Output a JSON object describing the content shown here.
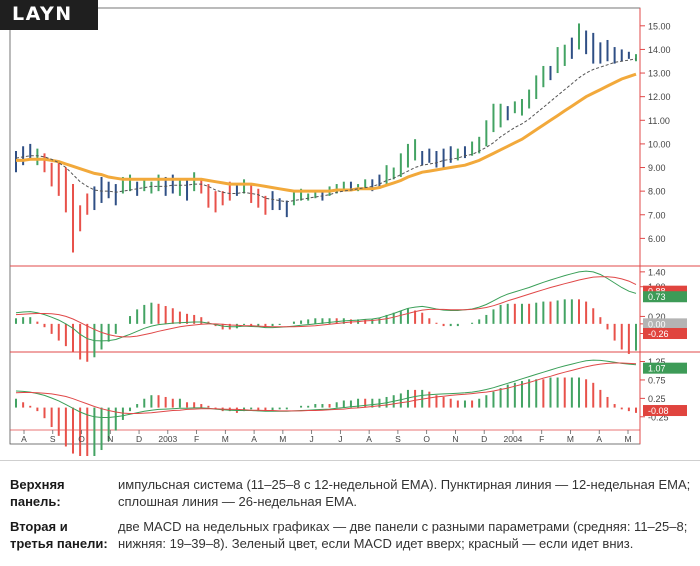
{
  "ticker": "LAYN",
  "colors": {
    "bull": "#43a363",
    "bear": "#e8514a",
    "neutral": "#2f4f85",
    "ema_slow": "#f2a93b",
    "ema_fast": "#555555",
    "axis": "#e04848",
    "macd_fast": "#3a9f58",
    "macd_slow": "#e04848",
    "tag_green": "#3d9b57",
    "tag_red": "#e0443e",
    "tag_gray": "#b4b4b4"
  },
  "chart_data": [
    {
      "type": "line",
      "title": "Верхняя панель: импульсная система",
      "x_ticks": [
        "A",
        "S",
        "O",
        "N",
        "D",
        "2003",
        "F",
        "M",
        "A",
        "M",
        "J",
        "J",
        "A",
        "S",
        "O",
        "N",
        "D",
        "2004",
        "F",
        "M",
        "A",
        "M"
      ],
      "y_ticks": [
        "15.00",
        "14.00",
        "13.00",
        "12.00",
        "11.00",
        "10.00",
        "9.00",
        "8.00",
        "7.00",
        "6.00"
      ],
      "y_tick_values": [
        15,
        14,
        13,
        12,
        11,
        10,
        9,
        8,
        7,
        6
      ],
      "ylim": [
        5.0,
        15.5
      ],
      "bars": [
        {
          "h": 9.7,
          "l": 8.8,
          "c": "neutral"
        },
        {
          "h": 9.9,
          "l": 9.1,
          "c": "neutral"
        },
        {
          "h": 10.0,
          "l": 9.3,
          "c": "neutral"
        },
        {
          "h": 9.8,
          "l": 9.1,
          "c": "bull"
        },
        {
          "h": 9.6,
          "l": 8.8,
          "c": "bear"
        },
        {
          "h": 9.2,
          "l": 8.2,
          "c": "bear"
        },
        {
          "h": 9.3,
          "l": 7.8,
          "c": "bear"
        },
        {
          "h": 9.0,
          "l": 7.1,
          "c": "bear"
        },
        {
          "h": 8.3,
          "l": 5.4,
          "c": "bear"
        },
        {
          "h": 7.4,
          "l": 6.3,
          "c": "bear"
        },
        {
          "h": 7.9,
          "l": 7.0,
          "c": "bear"
        },
        {
          "h": 8.2,
          "l": 7.2,
          "c": "neutral"
        },
        {
          "h": 8.6,
          "l": 7.5,
          "c": "neutral"
        },
        {
          "h": 8.4,
          "l": 7.7,
          "c": "neutral"
        },
        {
          "h": 8.3,
          "l": 7.4,
          "c": "neutral"
        },
        {
          "h": 8.6,
          "l": 7.9,
          "c": "bull"
        },
        {
          "h": 8.7,
          "l": 8.0,
          "c": "bull"
        },
        {
          "h": 8.4,
          "l": 7.8,
          "c": "neutral"
        },
        {
          "h": 8.5,
          "l": 8.0,
          "c": "bull"
        },
        {
          "h": 8.4,
          "l": 7.9,
          "c": "bull"
        },
        {
          "h": 8.7,
          "l": 8.0,
          "c": "bull"
        },
        {
          "h": 8.6,
          "l": 7.8,
          "c": "neutral"
        },
        {
          "h": 8.7,
          "l": 7.9,
          "c": "neutral"
        },
        {
          "h": 8.5,
          "l": 7.8,
          "c": "bull"
        },
        {
          "h": 8.5,
          "l": 7.6,
          "c": "neutral"
        },
        {
          "h": 8.8,
          "l": 8.0,
          "c": "bull"
        },
        {
          "h": 8.5,
          "l": 7.9,
          "c": "bear"
        },
        {
          "h": 8.3,
          "l": 7.3,
          "c": "bear"
        },
        {
          "h": 8.0,
          "l": 7.1,
          "c": "bear"
        },
        {
          "h": 8.0,
          "l": 7.4,
          "c": "bear"
        },
        {
          "h": 8.4,
          "l": 7.6,
          "c": "bear"
        },
        {
          "h": 8.3,
          "l": 7.8,
          "c": "neutral"
        },
        {
          "h": 8.5,
          "l": 7.9,
          "c": "bull"
        },
        {
          "h": 8.3,
          "l": 7.5,
          "c": "bear"
        },
        {
          "h": 8.1,
          "l": 7.3,
          "c": "bear"
        },
        {
          "h": 7.8,
          "l": 7.0,
          "c": "bear"
        },
        {
          "h": 8.0,
          "l": 7.2,
          "c": "neutral"
        },
        {
          "h": 7.7,
          "l": 7.2,
          "c": "neutral"
        },
        {
          "h": 7.6,
          "l": 6.9,
          "c": "neutral"
        },
        {
          "h": 8.0,
          "l": 7.4,
          "c": "bull"
        },
        {
          "h": 8.1,
          "l": 7.6,
          "c": "bull"
        },
        {
          "h": 7.9,
          "l": 7.6,
          "c": "bull"
        },
        {
          "h": 8.0,
          "l": 7.7,
          "c": "bull"
        },
        {
          "h": 8.0,
          "l": 7.6,
          "c": "neutral"
        },
        {
          "h": 8.2,
          "l": 7.8,
          "c": "bull"
        },
        {
          "h": 8.3,
          "l": 7.9,
          "c": "bull"
        },
        {
          "h": 8.4,
          "l": 8.0,
          "c": "bull"
        },
        {
          "h": 8.4,
          "l": 8.0,
          "c": "neutral"
        },
        {
          "h": 8.3,
          "l": 8.0,
          "c": "bull"
        },
        {
          "h": 8.5,
          "l": 8.1,
          "c": "bull"
        },
        {
          "h": 8.5,
          "l": 8.0,
          "c": "neutral"
        },
        {
          "h": 8.7,
          "l": 8.1,
          "c": "neutral"
        },
        {
          "h": 9.1,
          "l": 8.3,
          "c": "bull"
        },
        {
          "h": 9.0,
          "l": 8.5,
          "c": "bull"
        },
        {
          "h": 9.6,
          "l": 8.6,
          "c": "bull"
        },
        {
          "h": 10.0,
          "l": 9.0,
          "c": "bull"
        },
        {
          "h": 10.2,
          "l": 9.3,
          "c": "bull"
        },
        {
          "h": 9.7,
          "l": 9.1,
          "c": "neutral"
        },
        {
          "h": 9.8,
          "l": 9.2,
          "c": "neutral"
        },
        {
          "h": 9.7,
          "l": 9.0,
          "c": "neutral"
        },
        {
          "h": 9.8,
          "l": 8.9,
          "c": "neutral"
        },
        {
          "h": 9.9,
          "l": 9.2,
          "c": "neutral"
        },
        {
          "h": 9.8,
          "l": 9.3,
          "c": "bull"
        },
        {
          "h": 9.9,
          "l": 9.4,
          "c": "neutral"
        },
        {
          "h": 10.1,
          "l": 9.5,
          "c": "bull"
        },
        {
          "h": 10.3,
          "l": 9.6,
          "c": "bull"
        },
        {
          "h": 11.0,
          "l": 9.9,
          "c": "bull"
        },
        {
          "h": 11.7,
          "l": 10.5,
          "c": "bull"
        },
        {
          "h": 11.7,
          "l": 10.7,
          "c": "bull"
        },
        {
          "h": 11.6,
          "l": 11.0,
          "c": "neutral"
        },
        {
          "h": 11.8,
          "l": 11.3,
          "c": "bull"
        },
        {
          "h": 11.9,
          "l": 11.2,
          "c": "bull"
        },
        {
          "h": 12.3,
          "l": 11.5,
          "c": "bull"
        },
        {
          "h": 12.9,
          "l": 11.9,
          "c": "bull"
        },
        {
          "h": 13.3,
          "l": 12.4,
          "c": "bull"
        },
        {
          "h": 13.3,
          "l": 12.7,
          "c": "neutral"
        },
        {
          "h": 14.1,
          "l": 13.0,
          "c": "bull"
        },
        {
          "h": 14.2,
          "l": 13.3,
          "c": "bull"
        },
        {
          "h": 14.5,
          "l": 13.6,
          "c": "neutral"
        },
        {
          "h": 15.1,
          "l": 14.0,
          "c": "bull"
        },
        {
          "h": 14.8,
          "l": 13.8,
          "c": "neutral"
        },
        {
          "h": 14.7,
          "l": 13.4,
          "c": "neutral"
        },
        {
          "h": 14.3,
          "l": 13.4,
          "c": "neutral"
        },
        {
          "h": 14.4,
          "l": 13.5,
          "c": "neutral"
        },
        {
          "h": 14.1,
          "l": 13.4,
          "c": "neutral"
        },
        {
          "h": 14.0,
          "l": 13.5,
          "c": "neutral"
        },
        {
          "h": 13.9,
          "l": 13.6,
          "c": "neutral"
        },
        {
          "h": 13.8,
          "l": 13.5,
          "c": "bull"
        }
      ],
      "ema_fast_12": [
        9.4,
        9.45,
        9.5,
        9.5,
        9.45,
        9.35,
        9.2,
        9.0,
        8.7,
        8.4,
        8.2,
        8.05,
        8.0,
        8.0,
        7.95,
        8.0,
        8.05,
        8.1,
        8.15,
        8.2,
        8.2,
        8.2,
        8.25,
        8.25,
        8.25,
        8.3,
        8.3,
        8.2,
        8.05,
        7.95,
        7.9,
        7.9,
        7.95,
        7.9,
        7.85,
        7.7,
        7.65,
        7.6,
        7.55,
        7.6,
        7.65,
        7.7,
        7.75,
        7.8,
        7.85,
        7.95,
        8.0,
        8.05,
        8.1,
        8.15,
        8.2,
        8.3,
        8.45,
        8.55,
        8.7,
        8.85,
        9.0,
        9.1,
        9.15,
        9.2,
        9.3,
        9.35,
        9.4,
        9.5,
        9.55,
        9.7,
        9.85,
        10.05,
        10.3,
        10.5,
        10.7,
        10.85,
        11.05,
        11.3,
        11.55,
        11.8,
        12.05,
        12.3,
        12.55,
        12.8,
        13.0,
        13.15,
        13.25,
        13.35,
        13.45,
        13.5,
        13.55,
        13.6
      ],
      "ema_slow_26": [
        9.3,
        9.3,
        9.35,
        9.35,
        9.35,
        9.3,
        9.25,
        9.15,
        9.05,
        8.95,
        8.85,
        8.75,
        8.7,
        8.6,
        8.55,
        8.5,
        8.5,
        8.5,
        8.5,
        8.5,
        8.5,
        8.5,
        8.5,
        8.5,
        8.5,
        8.5,
        8.5,
        8.45,
        8.4,
        8.35,
        8.3,
        8.3,
        8.3,
        8.3,
        8.25,
        8.2,
        8.15,
        8.1,
        8.05,
        8.0,
        8.0,
        8.0,
        8.0,
        8.0,
        8.0,
        8.05,
        8.05,
        8.05,
        8.1,
        8.1,
        8.1,
        8.15,
        8.25,
        8.35,
        8.45,
        8.6,
        8.7,
        8.8,
        8.85,
        8.9,
        8.95,
        9.0,
        9.05,
        9.1,
        9.2,
        9.3,
        9.45,
        9.6,
        9.75,
        9.9,
        10.05,
        10.2,
        10.4,
        10.6,
        10.8,
        11.0,
        11.2,
        11.4,
        11.6,
        11.8,
        12.0,
        12.15,
        12.3,
        12.45,
        12.6,
        12.75,
        12.85,
        12.95
      ]
    },
    {
      "type": "bar",
      "title": "MACD 11–25–8",
      "y_ticks": [
        "1.40",
        "1.00",
        "0.20",
        "0.00",
        "-0.26"
      ],
      "y_tick_values": [
        1.4,
        1.0,
        0.2,
        0.0,
        -0.26
      ],
      "ylim": [
        -0.65,
        1.45
      ],
      "macd": [
        0.3,
        0.32,
        0.33,
        0.3,
        0.25,
        0.18,
        0.1,
        0.0,
        -0.12,
        -0.28,
        -0.4,
        -0.45,
        -0.46,
        -0.45,
        -0.42,
        -0.35,
        -0.28,
        -0.2,
        -0.12,
        -0.06,
        -0.02,
        0.0,
        0.02,
        0.03,
        0.04,
        0.05,
        0.05,
        0.02,
        -0.02,
        -0.06,
        -0.08,
        -0.08,
        -0.06,
        -0.07,
        -0.08,
        -0.1,
        -0.1,
        -0.09,
        -0.08,
        -0.06,
        -0.04,
        -0.02,
        0.0,
        0.02,
        0.04,
        0.06,
        0.08,
        0.09,
        0.1,
        0.12,
        0.13,
        0.16,
        0.22,
        0.28,
        0.35,
        0.42,
        0.45,
        0.47,
        0.44,
        0.4,
        0.37,
        0.36,
        0.36,
        0.38,
        0.4,
        0.45,
        0.52,
        0.62,
        0.72,
        0.8,
        0.86,
        0.92,
        0.98,
        1.05,
        1.12,
        1.18,
        1.24,
        1.3,
        1.35,
        1.4,
        1.42,
        1.4,
        1.33,
        1.22,
        1.1,
        0.98,
        0.88,
        0.82
      ],
      "signal": [
        0.25,
        0.26,
        0.27,
        0.28,
        0.28,
        0.27,
        0.25,
        0.2,
        0.13,
        0.04,
        -0.06,
        -0.15,
        -0.23,
        -0.29,
        -0.33,
        -0.35,
        -0.35,
        -0.33,
        -0.29,
        -0.25,
        -0.2,
        -0.16,
        -0.12,
        -0.08,
        -0.05,
        -0.03,
        -0.01,
        0.0,
        0.0,
        -0.01,
        -0.03,
        -0.04,
        -0.05,
        -0.05,
        -0.06,
        -0.07,
        -0.08,
        -0.08,
        -0.08,
        -0.08,
        -0.07,
        -0.06,
        -0.05,
        -0.03,
        -0.01,
        0.01,
        0.03,
        0.05,
        0.06,
        0.08,
        0.09,
        0.11,
        0.14,
        0.18,
        0.23,
        0.28,
        0.33,
        0.37,
        0.39,
        0.39,
        0.39,
        0.38,
        0.38,
        0.38,
        0.39,
        0.41,
        0.44,
        0.49,
        0.55,
        0.62,
        0.68,
        0.74,
        0.8,
        0.86,
        0.92,
        0.98,
        1.03,
        1.08,
        1.13,
        1.18,
        1.22,
        1.26,
        1.27,
        1.27,
        1.25,
        1.21,
        1.15,
        1.06
      ],
      "hist_scale": 1.0,
      "tags": [
        {
          "text": "0.88",
          "color": "tag_red",
          "value": 0.88
        },
        {
          "text": "0.73",
          "color": "tag_green",
          "value": 0.73
        },
        {
          "text": "0.00",
          "color": "tag_gray",
          "value": 0.0
        },
        {
          "text": "-0.26",
          "color": "tag_red",
          "value": -0.26
        }
      ]
    },
    {
      "type": "bar",
      "title": "MACD 19–39–8",
      "y_ticks": [
        "1.25",
        "0.75",
        "0.25",
        "-0.25"
      ],
      "y_tick_values": [
        1.25,
        0.75,
        0.25,
        -0.25
      ],
      "ylim": [
        -0.5,
        1.4
      ],
      "macd": [
        0.45,
        0.44,
        0.42,
        0.38,
        0.33,
        0.26,
        0.18,
        0.08,
        -0.02,
        -0.12,
        -0.2,
        -0.25,
        -0.27,
        -0.27,
        -0.25,
        -0.22,
        -0.18,
        -0.14,
        -0.1,
        -0.07,
        -0.05,
        -0.04,
        -0.03,
        -0.02,
        -0.02,
        -0.01,
        -0.01,
        -0.02,
        -0.04,
        -0.06,
        -0.07,
        -0.08,
        -0.08,
        -0.08,
        -0.09,
        -0.1,
        -0.1,
        -0.1,
        -0.1,
        -0.09,
        -0.08,
        -0.07,
        -0.06,
        -0.05,
        -0.04,
        -0.02,
        0.0,
        0.02,
        0.04,
        0.06,
        0.08,
        0.1,
        0.13,
        0.17,
        0.21,
        0.26,
        0.3,
        0.33,
        0.35,
        0.36,
        0.37,
        0.38,
        0.39,
        0.4,
        0.42,
        0.45,
        0.49,
        0.54,
        0.6,
        0.66,
        0.72,
        0.78,
        0.84,
        0.9,
        0.96,
        1.02,
        1.08,
        1.13,
        1.18,
        1.23,
        1.27,
        1.29,
        1.28,
        1.26,
        1.23,
        1.2,
        1.18,
        1.16
      ],
      "signal": [
        0.4,
        0.41,
        0.41,
        0.4,
        0.39,
        0.37,
        0.34,
        0.3,
        0.24,
        0.17,
        0.1,
        0.03,
        -0.03,
        -0.08,
        -0.12,
        -0.15,
        -0.16,
        -0.16,
        -0.15,
        -0.14,
        -0.12,
        -0.1,
        -0.08,
        -0.07,
        -0.05,
        -0.04,
        -0.03,
        -0.03,
        -0.03,
        -0.04,
        -0.05,
        -0.05,
        -0.06,
        -0.07,
        -0.07,
        -0.08,
        -0.08,
        -0.09,
        -0.09,
        -0.09,
        -0.09,
        -0.08,
        -0.08,
        -0.07,
        -0.06,
        -0.05,
        -0.04,
        -0.02,
        -0.01,
        0.01,
        0.03,
        0.05,
        0.07,
        0.1,
        0.13,
        0.16,
        0.2,
        0.23,
        0.26,
        0.29,
        0.31,
        0.33,
        0.35,
        0.36,
        0.38,
        0.4,
        0.42,
        0.45,
        0.49,
        0.53,
        0.58,
        0.63,
        0.68,
        0.74,
        0.8,
        0.85,
        0.91,
        0.96,
        1.01,
        1.06,
        1.11,
        1.15,
        1.18,
        1.2,
        1.21,
        1.21,
        1.2,
        1.19
      ],
      "hist_scale": 1.6,
      "tags": [
        {
          "text": "1.07",
          "color": "tag_green",
          "value": 1.07
        },
        {
          "text": "-0.08",
          "color": "tag_red",
          "value": -0.08
        }
      ]
    }
  ],
  "captions": [
    {
      "label": "Верхняя панель:",
      "text": "импульсная система (11–25–8 с 12-недельной EMA). Пунктирная линия — 12-недельная EMA; сплошная линия — 26-недельная EMA."
    },
    {
      "label": "Вторая и третья панели:",
      "text": "две MACD на недельных графиках — две панели с разными параметрами (средняя: 11–25–8; нижняя: 19–39–8). Зеленый цвет, если MACD идет вверх; красный — если идет вниз."
    }
  ]
}
